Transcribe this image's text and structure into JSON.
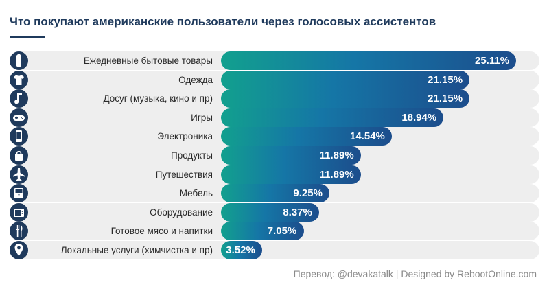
{
  "chart_data": {
    "type": "bar",
    "orientation": "horizontal",
    "title": "Что покупают американские пользователи через голосовых ассистентов",
    "categories": [
      "Ежедневные бытовые товары",
      "Одежда",
      "Досуг (музыка, кино и пр)",
      "Игры",
      "Электроника",
      "Продукты",
      "Путешествия",
      "Мебель",
      "Оборудование",
      "Готовое мясо и напитки",
      "Локальные услуги (химчистка и пр)"
    ],
    "values": [
      25.11,
      21.15,
      21.15,
      18.94,
      14.54,
      11.89,
      11.89,
      9.25,
      8.37,
      7.05,
      3.52
    ],
    "value_labels": [
      "25.11%",
      "21.15%",
      "21.15%",
      "18.94%",
      "14.54%",
      "11.89%",
      "11.89%",
      "9.25%",
      "8.37%",
      "7.05%",
      "3.52%"
    ],
    "icons": [
      "household-goods-icon",
      "tshirt-icon",
      "music-note-icon",
      "gamepad-icon",
      "smartphone-icon",
      "shopping-bag-icon",
      "airplane-icon",
      "furniture-icon",
      "appliance-icon",
      "fork-knife-icon",
      "location-pin-icon"
    ],
    "xlim": [
      0,
      25.11
    ],
    "grid": false,
    "legend": "none"
  },
  "colors": {
    "title": "#1f3a5c",
    "icon_bg": "#1f3a5c",
    "track": "#eeeeee",
    "bar_start": "#12a08e",
    "bar_end": "#1c4d8c"
  },
  "credit": "Перевод: @devakatalk | Designed by RebootOnline.com"
}
